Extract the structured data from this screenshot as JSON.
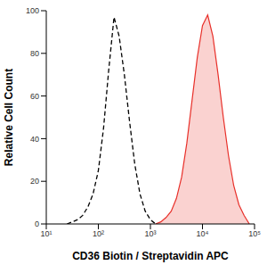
{
  "chart_data": {
    "type": "line",
    "x_label": "CD36 Biotin / Streptavidin APC",
    "y_label": "Relative Cell Count",
    "log": "x",
    "grid": false,
    "xlim": [
      10,
      100000
    ],
    "xticks": [
      {
        "value": 10,
        "label": "10¹"
      },
      {
        "value": 100,
        "label": "10²"
      },
      {
        "value": 1000,
        "label": "10³"
      },
      {
        "value": 10000,
        "label": "10⁴"
      },
      {
        "value": 100000,
        "label": "10⁵"
      }
    ],
    "ylim": [
      0,
      100
    ],
    "yticks": [
      0,
      20,
      40,
      60,
      80,
      100
    ],
    "x": [
      25,
      32,
      40,
      50,
      63,
      79,
      100,
      126,
      158,
      200,
      251,
      316,
      398,
      501,
      631,
      794,
      1000,
      1259,
      1585,
      1995,
      2512,
      3162,
      3981,
      5012,
      6310,
      7943,
      10000,
      12589,
      15849,
      19953,
      25119,
      31623,
      39811,
      50119,
      63096,
      79433
    ],
    "series": [
      {
        "type": "line",
        "color": "#000000",
        "line_style": "dashed",
        "values": [
          0,
          1,
          2,
          4,
          8,
          14,
          25,
          45,
          72,
          97,
          88,
          70,
          48,
          28,
          14,
          6,
          2,
          0,
          null,
          null,
          null,
          null,
          null,
          null,
          null,
          null,
          null,
          null,
          null,
          null,
          null,
          null,
          null,
          null,
          null,
          null
        ]
      },
      {
        "type": "area",
        "color": "#e8302a",
        "line_style": "solid",
        "values": [
          null,
          null,
          null,
          null,
          null,
          null,
          null,
          null,
          null,
          null,
          null,
          null,
          null,
          null,
          null,
          null,
          null,
          0,
          1,
          3,
          6,
          12,
          22,
          38,
          58,
          78,
          93,
          98,
          88,
          70,
          50,
          32,
          18,
          9,
          4,
          0
        ]
      }
    ]
  }
}
